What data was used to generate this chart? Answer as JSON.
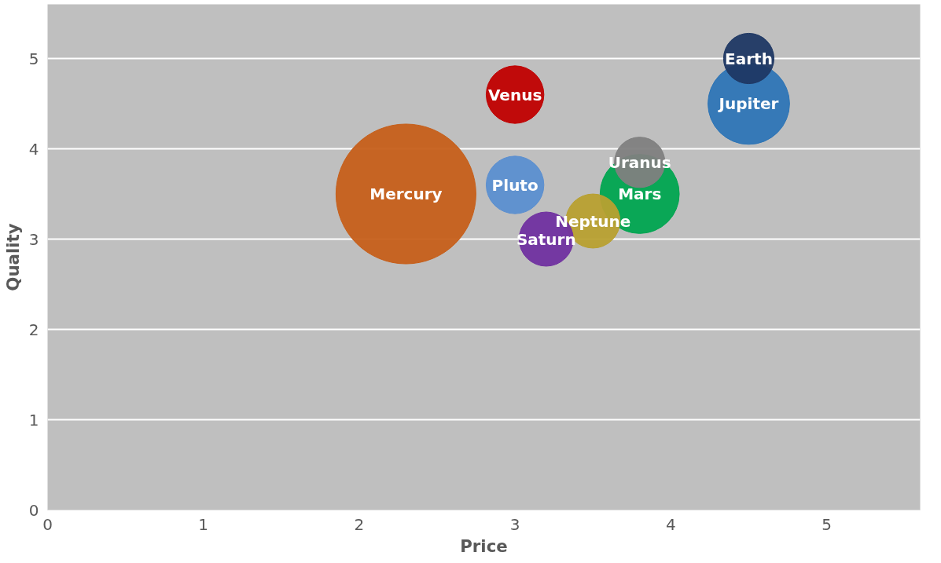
{
  "chart_data": {
    "type": "bubble",
    "xlabel": "Price",
    "ylabel": "Quality",
    "xlim": [
      0,
      5.6
    ],
    "ylim": [
      0,
      5.6
    ],
    "xticks": [
      0,
      1,
      2,
      3,
      4,
      5
    ],
    "yticks": [
      0,
      1,
      2,
      3,
      4,
      5
    ],
    "grid": "y",
    "legend": false,
    "series": [
      {
        "name": "Mercury",
        "color": "#c65f1a",
        "x": [
          2.3
        ],
        "values": [
          3.5
        ],
        "sizes": [
          1
        ]
      },
      {
        "name": "Venus",
        "color": "#c00000",
        "x": [
          3.0
        ],
        "values": [
          4.6
        ],
        "sizes": [
          0.17
        ]
      },
      {
        "name": "Pluto",
        "color": "#5b8fd0",
        "x": [
          3.0
        ],
        "values": [
          3.6
        ],
        "sizes": [
          0.17
        ]
      },
      {
        "name": "Mars",
        "color": "#00a550",
        "x": [
          3.8
        ],
        "values": [
          3.5
        ],
        "sizes": [
          0.32
        ]
      },
      {
        "name": "Uranus",
        "color": "#808080",
        "x": [
          3.8
        ],
        "values": [
          3.85
        ],
        "sizes": [
          0.13
        ]
      },
      {
        "name": "Neptune",
        "color": "#b8a030",
        "x": [
          3.5
        ],
        "values": [
          3.2
        ],
        "sizes": [
          0.15
        ]
      },
      {
        "name": "Saturn",
        "color": "#7030a0",
        "x": [
          3.2
        ],
        "values": [
          3.0
        ],
        "sizes": [
          0.15
        ]
      },
      {
        "name": "Jupiter",
        "color": "#2e75b6",
        "x": [
          4.5
        ],
        "values": [
          4.5
        ],
        "sizes": [
          0.34
        ]
      },
      {
        "name": "Earth",
        "color": "#1f3864",
        "x": [
          4.5
        ],
        "values": [
          5.0
        ],
        "sizes": [
          0.13
        ]
      }
    ]
  }
}
